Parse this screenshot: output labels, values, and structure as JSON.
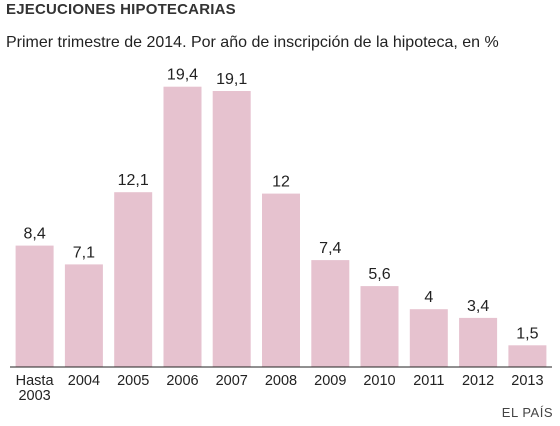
{
  "header": {
    "title": "EJECUCIONES HIPOTECARIAS",
    "subtitle": "Primer trimestre de 2014. Por año de inscripción de la hipoteca, en %"
  },
  "source": "EL PAÍS",
  "colors": {
    "bar": "#e6c2cf",
    "baseline": "#222222"
  },
  "chart_data": {
    "type": "bar",
    "title": "EJECUCIONES HIPOTECARIAS",
    "subtitle": "Primer trimestre de 2014. Por año de inscripción de la hipoteca, en %",
    "categories": [
      "Hasta 2003",
      "2004",
      "2005",
      "2006",
      "2007",
      "2008",
      "2009",
      "2010",
      "2011",
      "2012",
      "2013"
    ],
    "category_lines": [
      [
        "Hasta",
        "2003"
      ],
      [
        "2004"
      ],
      [
        "2005"
      ],
      [
        "2006"
      ],
      [
        "2007"
      ],
      [
        "2008"
      ],
      [
        "2009"
      ],
      [
        "2010"
      ],
      [
        "2011"
      ],
      [
        "2012"
      ],
      [
        "2013"
      ]
    ],
    "values": [
      8.4,
      7.1,
      12.1,
      19.4,
      19.1,
      12,
      7.4,
      5.6,
      4,
      3.4,
      1.5
    ],
    "value_labels": [
      "8,4",
      "7,1",
      "12,1",
      "19,4",
      "19,1",
      "12",
      "7,4",
      "5,6",
      "4",
      "3,4",
      "1,5"
    ],
    "xlabel": "",
    "ylabel": "",
    "ylim": [
      0,
      20
    ],
    "grid": false,
    "legend": "none"
  }
}
